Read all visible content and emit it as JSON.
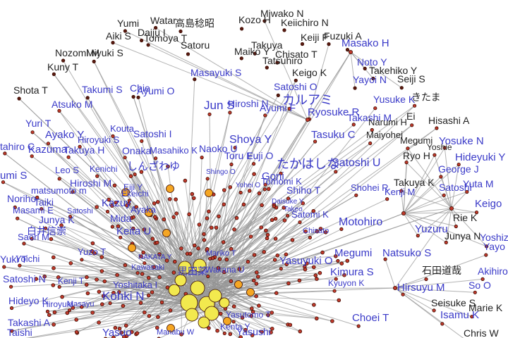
{
  "network": {
    "colors": {
      "edge": "#9a9a9a",
      "node_default": "#c0392b",
      "node_mid": "#f5a623",
      "node_hub": "#f2e94e",
      "label_blue": "#3a3ac8",
      "label_black": "#222222"
    },
    "labels": [
      {
        "text": "Yumi",
        "c": "black"
      },
      {
        "text": "Watar",
        "c": "black"
      },
      {
        "text": "高島稔昭",
        "c": "black"
      },
      {
        "text": "Kozo H",
        "c": "black"
      },
      {
        "text": "Miwako N",
        "c": "black"
      },
      {
        "text": "Keiichiro N",
        "c": "black"
      },
      {
        "text": "Aiki S",
        "c": "black"
      },
      {
        "text": "Daiju I",
        "c": "black"
      },
      {
        "text": "Tomoya T",
        "c": "black"
      },
      {
        "text": "Keiji F",
        "c": "black"
      },
      {
        "text": "Fuzuki A",
        "c": "black"
      },
      {
        "text": "Masako H",
        "c": "blue"
      },
      {
        "text": "Nozomi M",
        "c": "black"
      },
      {
        "text": "Miyuki S",
        "c": "black"
      },
      {
        "text": "Satoru",
        "c": "black"
      },
      {
        "text": "Takuya",
        "c": "black"
      },
      {
        "text": "Maiko Y",
        "c": "black"
      },
      {
        "text": "Chisato T",
        "c": "black"
      },
      {
        "text": "Tatsuhiro",
        "c": "black"
      },
      {
        "text": "Noto Y",
        "c": "blue"
      },
      {
        "text": "Kuny T",
        "c": "black"
      },
      {
        "text": "Keigo K",
        "c": "black"
      },
      {
        "text": "Takehiko Y",
        "c": "black"
      },
      {
        "text": "Masayuki S",
        "c": "blue"
      },
      {
        "text": "Yayoi N",
        "c": "blue"
      },
      {
        "text": "Seiji S",
        "c": "black"
      },
      {
        "text": "Shota T",
        "c": "black"
      },
      {
        "text": "Takumi S",
        "c": "blue"
      },
      {
        "text": "Chie",
        "c": "blue"
      },
      {
        "text": "Ayumi O",
        "c": "blue"
      },
      {
        "text": "Satoshi O",
        "c": "blue"
      },
      {
        "text": "Yusuke K",
        "c": "blue"
      },
      {
        "text": "きたま",
        "c": "black"
      },
      {
        "text": "カルアミ",
        "c": "blue"
      },
      {
        "text": "Atsuko M",
        "c": "blue"
      },
      {
        "text": "Jun S",
        "c": "blue"
      },
      {
        "text": "Hiroshi N",
        "c": "blue"
      },
      {
        "text": "Ayumi F",
        "c": "blue"
      },
      {
        "text": "Ryosuke R",
        "c": "blue"
      },
      {
        "text": "Takashi M",
        "c": "blue"
      },
      {
        "text": "Ei",
        "c": "black"
      },
      {
        "text": "Hisashi A",
        "c": "black"
      },
      {
        "text": "Yuri T",
        "c": "blue"
      },
      {
        "text": "Kouta",
        "c": "blue"
      },
      {
        "text": "Narumi H",
        "c": "black"
      },
      {
        "text": "Ayako Y",
        "c": "blue"
      },
      {
        "text": "Satoshi I",
        "c": "blue"
      },
      {
        "text": "Tasuku C",
        "c": "blue"
      },
      {
        "text": "Maiyohei",
        "c": "black"
      },
      {
        "text": "Megumi",
        "c": "black"
      },
      {
        "text": "Yosuke N",
        "c": "blue"
      },
      {
        "text": "Hiroyuki S",
        "c": "blue"
      },
      {
        "text": "Shoya Y",
        "c": "blue"
      },
      {
        "text": "Yoshie",
        "c": "black"
      },
      {
        "text": "tahiro C",
        "c": "blue"
      },
      {
        "text": "Kazuma",
        "c": "blue"
      },
      {
        "text": "Takuya H",
        "c": "blue"
      },
      {
        "text": "Onaka",
        "c": "blue"
      },
      {
        "text": "Masahiko K",
        "c": "blue"
      },
      {
        "text": "Naoko U",
        "c": "blue"
      },
      {
        "text": "Toru E",
        "c": "blue"
      },
      {
        "text": "Fuji O",
        "c": "blue"
      },
      {
        "text": "Ryo H",
        "c": "black"
      },
      {
        "text": "Hideyuki Y",
        "c": "blue"
      },
      {
        "text": "たかはしな",
        "c": "blue"
      },
      {
        "text": "Satoshi U",
        "c": "blue"
      },
      {
        "text": "umi S",
        "c": "blue"
      },
      {
        "text": "Leo S",
        "c": "blue"
      },
      {
        "text": "Kenichi",
        "c": "blue"
      },
      {
        "text": "しんざわゆ",
        "c": "blue"
      },
      {
        "text": "Shingo O",
        "c": "blue"
      },
      {
        "text": "Goni",
        "c": "blue"
      },
      {
        "text": "George J",
        "c": "blue"
      },
      {
        "text": "Hiroshi M",
        "c": "blue"
      },
      {
        "text": "Eiji Y",
        "c": "blue"
      },
      {
        "text": "Yohei O",
        "c": "blue"
      },
      {
        "text": "Tomomi K",
        "c": "blue"
      },
      {
        "text": "Shohei R",
        "c": "blue"
      },
      {
        "text": "Takuya K",
        "c": "black"
      },
      {
        "text": "Yuta M",
        "c": "blue"
      },
      {
        "text": "matsumoto m",
        "c": "blue"
      },
      {
        "text": "Ekeichi",
        "c": "blue"
      },
      {
        "text": "Shiho T",
        "c": "blue"
      },
      {
        "text": "Kenji M",
        "c": "blue"
      },
      {
        "text": "Satoshi",
        "c": "blue"
      },
      {
        "text": "Noriho",
        "c": "blue"
      },
      {
        "text": "Taiki",
        "c": "blue"
      },
      {
        "text": "Kazuy",
        "c": "blue"
      },
      {
        "text": "Daisuke Y",
        "c": "blue"
      },
      {
        "text": "Keigo",
        "c": "blue"
      },
      {
        "text": "Masami E",
        "c": "blue"
      },
      {
        "text": "Satoshi",
        "c": "blue"
      },
      {
        "text": "Ayaka",
        "c": "blue"
      },
      {
        "text": "Satomi K",
        "c": "blue"
      },
      {
        "text": "Takeo",
        "c": "blue"
      },
      {
        "text": "Rie K",
        "c": "black"
      },
      {
        "text": "白井信崇",
        "c": "blue"
      },
      {
        "text": "Junya K",
        "c": "blue"
      },
      {
        "text": "Mida",
        "c": "blue"
      },
      {
        "text": "Motohiro",
        "c": "blue"
      },
      {
        "text": "Yuzuru",
        "c": "blue"
      },
      {
        "text": "Saori M",
        "c": "blue"
      },
      {
        "text": "Keita U",
        "c": "blue"
      },
      {
        "text": "Junya N",
        "c": "black"
      },
      {
        "text": "Yoshizaw",
        "c": "blue"
      },
      {
        "text": "Chisato",
        "c": "blue"
      },
      {
        "text": "Yuzo T",
        "c": "blue"
      },
      {
        "text": "Mariko T",
        "c": "blue"
      },
      {
        "text": "Megumi",
        "c": "blue"
      },
      {
        "text": "Natsuko S",
        "c": "blue"
      },
      {
        "text": "Yayo",
        "c": "blue"
      },
      {
        "text": "Yuki T",
        "c": "blue"
      },
      {
        "text": "Yoichi",
        "c": "blue"
      },
      {
        "text": "NAKATA Y",
        "c": "blue"
      },
      {
        "text": "Wakana U",
        "c": "blue"
      },
      {
        "text": "Yasuyuki O",
        "c": "blue"
      },
      {
        "text": "Kawasaki",
        "c": "blue"
      },
      {
        "text": "黒田薬",
        "c": "blue"
      },
      {
        "text": "Kimura S",
        "c": "blue"
      },
      {
        "text": "石田道哉",
        "c": "black"
      },
      {
        "text": "Akihiro",
        "c": "blue"
      },
      {
        "text": "Satoshi N",
        "c": "blue"
      },
      {
        "text": "Kenji T",
        "c": "blue"
      },
      {
        "text": "Yoshitaka I",
        "c": "blue"
      },
      {
        "text": "Kyuyon K",
        "c": "blue"
      },
      {
        "text": "Hirsuyu M",
        "c": "blue"
      },
      {
        "text": "So O",
        "c": "blue"
      },
      {
        "text": "Hideyo K",
        "c": "blue"
      },
      {
        "text": "Kohki N",
        "c": "blue"
      },
      {
        "text": "Hiroyuki",
        "c": "blue"
      },
      {
        "text": "Seisuke S",
        "c": "black"
      },
      {
        "text": "Marie K",
        "c": "black"
      },
      {
        "text": "Masayu",
        "c": "blue"
      },
      {
        "text": "Yasutomo T",
        "c": "blue"
      },
      {
        "text": "Isamu K",
        "c": "blue"
      },
      {
        "text": "Takashi A",
        "c": "blue"
      },
      {
        "text": "Choei T",
        "c": "blue"
      },
      {
        "text": "Taishi",
        "c": "blue"
      },
      {
        "text": "Yasuo",
        "c": "blue"
      },
      {
        "text": "Manabu W",
        "c": "blue"
      },
      {
        "text": "Kenta Y",
        "c": "blue"
      },
      {
        "text": "Yasushi",
        "c": "blue"
      },
      {
        "text": "Chris W",
        "c": "black"
      }
    ]
  }
}
